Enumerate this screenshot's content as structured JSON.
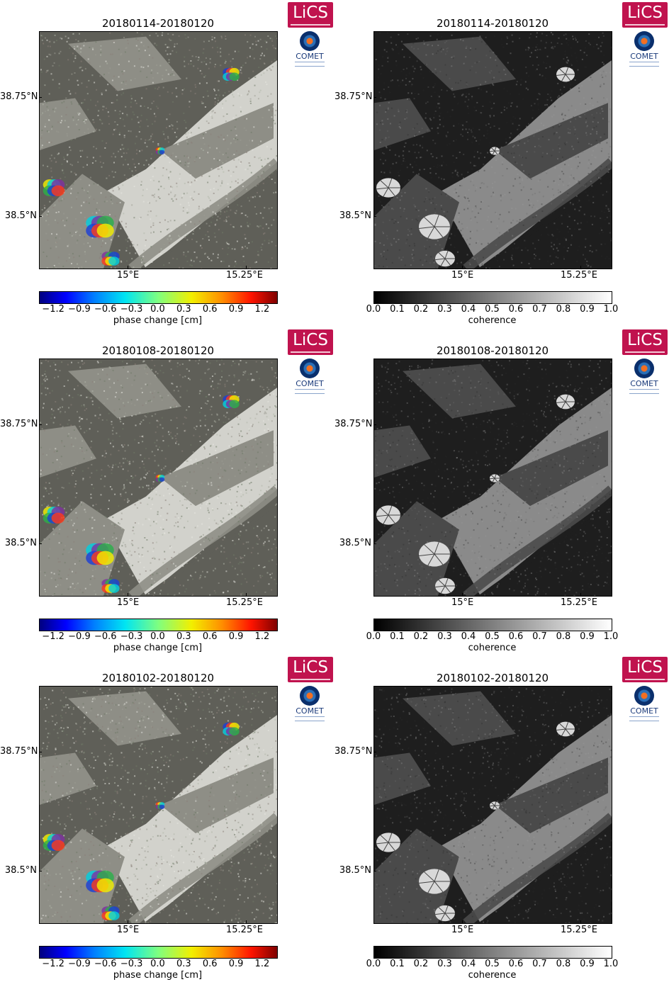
{
  "logos": {
    "lics_text": "LiCS",
    "comet_text": "COMET"
  },
  "axes": {
    "lat_labels": [
      "38.75°N",
      "38.5°N"
    ],
    "lon_labels": [
      "15°E",
      "15.25°E"
    ]
  },
  "phase_colorbar": {
    "ticks": [
      "−1.2",
      "−0.9",
      "−0.6",
      "−0.3",
      "0.0",
      "0.3",
      "0.6",
      "0.9",
      "1.2"
    ],
    "label": "phase change [cm]"
  },
  "coherence_colorbar": {
    "ticks": [
      "0.0",
      "0.1",
      "0.2",
      "0.3",
      "0.4",
      "0.5",
      "0.6",
      "0.7",
      "0.8",
      "0.9",
      "1.0"
    ],
    "label": "coherence"
  },
  "rows": [
    {
      "title_left": "20180114-20180120",
      "title_right": "20180114-20180120"
    },
    {
      "title_left": "20180108-20180120",
      "title_right": "20180108-20180120"
    },
    {
      "title_left": "20180102-20180120",
      "title_right": "20180102-20180120"
    }
  ],
  "colors": {
    "lics_brand": "#c0134e",
    "comet_brand": "#1a3a7a"
  }
}
